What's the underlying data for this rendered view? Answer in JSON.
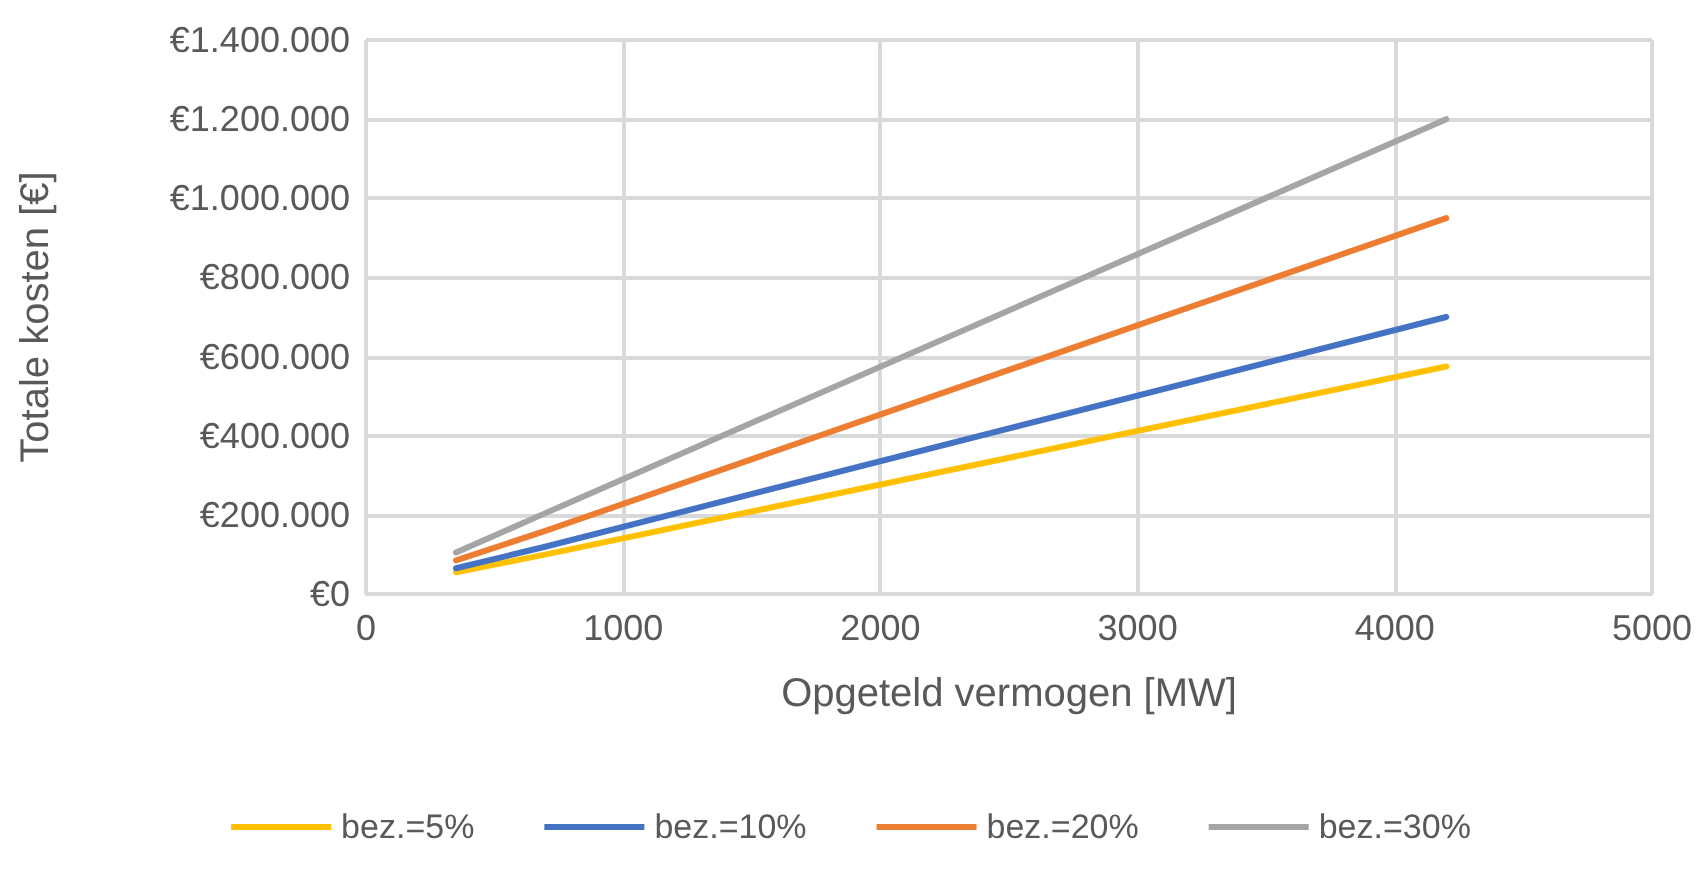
{
  "chart_data": {
    "type": "line",
    "xlabel": "Opgeteld vermogen [MW]",
    "ylabel": "Totale kosten [€]",
    "xlim": [
      0,
      5000
    ],
    "xticks": [
      0,
      1000,
      2000,
      3000,
      4000,
      5000
    ],
    "ylim": [
      0,
      1400000
    ],
    "yticks": [
      {
        "value": 0,
        "label": "€0"
      },
      {
        "value": 200000,
        "label": "€200.000"
      },
      {
        "value": 400000,
        "label": "€400.000"
      },
      {
        "value": 600000,
        "label": "€600.000"
      },
      {
        "value": 800000,
        "label": "€800.000"
      },
      {
        "value": 1000000,
        "label": "€1.000.000"
      },
      {
        "value": 1200000,
        "label": "€1.200.000"
      },
      {
        "value": 1400000,
        "label": "€1.400.000"
      }
    ],
    "x": [
      350,
      700,
      4200
    ],
    "series": [
      {
        "name": "bez.=5%",
        "color": "#ffc000",
        "values": [
          55000,
          100000,
          575000
        ]
      },
      {
        "name": "bez.=10%",
        "color": "#4472c4",
        "values": [
          65000,
          120000,
          700000
        ]
      },
      {
        "name": "bez.=20%",
        "color": "#ed7d31",
        "values": [
          85000,
          160000,
          950000
        ]
      },
      {
        "name": "bez.=30%",
        "color": "#a5a5a5",
        "values": [
          105000,
          205000,
          1200000
        ]
      }
    ],
    "grid": true,
    "legend": "bottom",
    "marker": "none",
    "line_style": "solid"
  }
}
